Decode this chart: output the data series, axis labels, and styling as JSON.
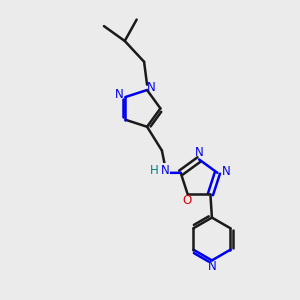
{
  "bg_color": "#ebebeb",
  "bond_color": "#1a1a1a",
  "N_color": "#0000ee",
  "O_color": "#dd0000",
  "H_color": "#008080",
  "line_width": 1.8,
  "fig_width": 3.0,
  "fig_height": 3.0,
  "dpi": 100,
  "xlim": [
    0,
    10
  ],
  "ylim": [
    0,
    10
  ]
}
